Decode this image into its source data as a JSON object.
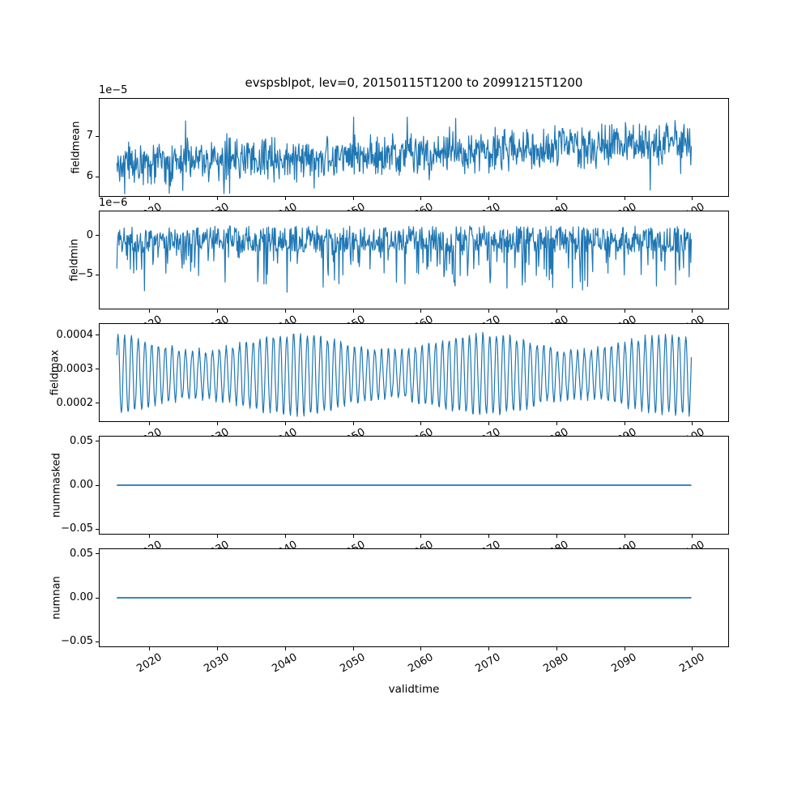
{
  "chart_data": {
    "type": "line",
    "title": "evspsblpot, lev=0, 20150115T1200 to 20991215T1200",
    "xlabel": "validtime",
    "line_color": "#1f77b4",
    "grid": false,
    "legend": "none",
    "xlim": [
      2012.5,
      2105.4
    ],
    "x_data_range": [
      2015.04,
      2099.96
    ],
    "xticks": {
      "values": [
        2020,
        2030,
        2040,
        2050,
        2060,
        2070,
        2080,
        2090,
        2100
      ],
      "labels": [
        "2020",
        "2030",
        "2040",
        "2050",
        "2060",
        "2070",
        "2080",
        "2090",
        "2100"
      ]
    },
    "subplots": [
      {
        "name": "fieldmean",
        "ylabel": "fieldmean",
        "offset_label": "1e−5",
        "ylim": [
          5.5e-05,
          7.95e-05
        ],
        "value_range": [
          5.6e-05,
          7.9e-05
        ],
        "yticks": [
          {
            "value": 6e-05,
            "label": "6"
          },
          {
            "value": 7e-05,
            "label": "7"
          }
        ],
        "series": {
          "kind": "noisy_trend",
          "n": 1020,
          "base": 6.3,
          "trend": 0.55,
          "noise": 0.62,
          "dip_prob": 0.04,
          "dip": 0.8,
          "up_prob": 0.03,
          "up": 0.6,
          "scale": 1e-05,
          "seed": 42
        }
      },
      {
        "name": "fieldmin",
        "ylabel": "fieldmin",
        "offset_label": "1e−6",
        "ylim": [
          -9.4e-06,
          3.2e-06
        ],
        "value_range": [
          -8.3e-06,
          1.4e-06
        ],
        "yticks": [
          {
            "value": 0,
            "label": "0"
          },
          {
            "value": -5e-06,
            "label": "−5"
          }
        ],
        "series": {
          "kind": "spiky",
          "n": 1020,
          "base": 1.3,
          "noise": 3.4,
          "spike_prob": 0.18,
          "spike": 5.6,
          "floor": -8.3,
          "scale": 1e-06,
          "seed": 7
        }
      },
      {
        "name": "fieldmax",
        "ylabel": "fieldmax",
        "offset_label": null,
        "ylim": [
          0.000145,
          0.000435
        ],
        "value_range": [
          0.00016,
          0.00042
        ],
        "yticks": [
          {
            "value": 0.0002,
            "label": "0.0002"
          },
          {
            "value": 0.0003,
            "label": "0.0003"
          },
          {
            "value": 0.0004,
            "label": "0.0004"
          }
        ],
        "series": {
          "kind": "seasonal",
          "n": 1020,
          "mean": 2.85,
          "amp": 0.95,
          "amp_var": 0.25,
          "cycles": 85,
          "noise": 0.18,
          "scale": 0.0001,
          "seed": 11
        }
      },
      {
        "name": "nummasked",
        "ylabel": "nummasked",
        "offset_label": null,
        "ylim": [
          -0.056,
          0.056
        ],
        "value_range": [
          0,
          0
        ],
        "yticks": [
          {
            "value": 0.05,
            "label": "0.05"
          },
          {
            "value": 0.0,
            "label": "0.00"
          },
          {
            "value": -0.05,
            "label": "−0.05"
          }
        ],
        "series": {
          "kind": "constant",
          "value": 0
        }
      },
      {
        "name": "numnan",
        "ylabel": "numnan",
        "offset_label": null,
        "ylim": [
          -0.056,
          0.056
        ],
        "value_range": [
          0,
          0
        ],
        "yticks": [
          {
            "value": 0.05,
            "label": "0.05"
          },
          {
            "value": 0.0,
            "label": "0.00"
          },
          {
            "value": -0.05,
            "label": "−0.05"
          }
        ],
        "series": {
          "kind": "constant",
          "value": 0
        }
      }
    ]
  }
}
